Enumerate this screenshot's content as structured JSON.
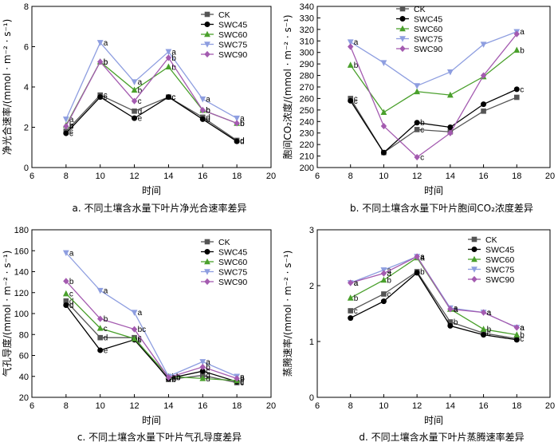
{
  "colors": {
    "CK": "#555555",
    "SWC45": "#000000",
    "SWC60": "#4aa02c",
    "SWC75": "#8e9ee0",
    "SWC90": "#a45bb0"
  },
  "markers": {
    "CK": "square",
    "SWC45": "circle",
    "SWC60": "triangle-up",
    "SWC75": "triangle-down",
    "SWC90": "diamond"
  },
  "chart_data": [
    {
      "type": "line",
      "caption": "a.  不同土壤含水量下叶片净光合速率差异",
      "xlabel": "时间",
      "ylabel": "净光合速率/(mmol · m⁻² · s⁻¹)",
      "xlim": [
        6,
        20
      ],
      "ylim": [
        0,
        8
      ],
      "xticks": [
        6,
        8,
        10,
        12,
        14,
        16,
        18,
        20
      ],
      "yticks": [
        0,
        2,
        4,
        6,
        8
      ],
      "x": [
        8,
        10,
        12,
        14,
        16,
        18
      ],
      "legend_position": "top-right",
      "series": [
        {
          "name": "CK",
          "values": [
            1.8,
            3.6,
            2.8,
            3.5,
            2.5,
            1.35
          ],
          "labels": [
            "c",
            "c",
            "d",
            "c",
            "d",
            "d"
          ]
        },
        {
          "name": "SWC45",
          "values": [
            1.7,
            3.5,
            2.45,
            3.5,
            2.4,
            1.3
          ],
          "labels": [
            "c",
            "c",
            "e",
            "c",
            "d",
            "d"
          ]
        },
        {
          "name": "SWC60",
          "values": [
            2.1,
            5.25,
            3.85,
            5.0,
            2.85,
            2.2
          ],
          "labels": [
            "b",
            "b",
            "b",
            "b",
            "b",
            "b"
          ]
        },
        {
          "name": "SWC75",
          "values": [
            2.4,
            6.2,
            4.25,
            5.75,
            3.4,
            2.45
          ],
          "labels": [
            "a",
            "a",
            "a",
            "a",
            "a",
            "a"
          ]
        },
        {
          "name": "SWC90",
          "values": [
            2.05,
            5.25,
            3.3,
            5.45,
            2.85,
            2.2
          ],
          "labels": [
            "b",
            "b",
            "c",
            "b",
            "b",
            "b"
          ]
        }
      ]
    },
    {
      "type": "line",
      "caption": "b.  不同土壤含水量下叶片胞间CO₂浓度差异",
      "xlabel": "时间",
      "ylabel": "胞间CO₂浓度/(mmol · m⁻² · s⁻¹)",
      "xlim": [
        6,
        20
      ],
      "ylim": [
        200,
        340
      ],
      "xticks": [
        6,
        8,
        10,
        12,
        14,
        16,
        18,
        20
      ],
      "yticks": [
        200,
        210,
        220,
        230,
        240,
        250,
        260,
        270,
        280,
        290,
        300,
        310,
        320,
        330,
        340
      ],
      "x": [
        8,
        10,
        12,
        14,
        16,
        18
      ],
      "legend_position": "top-left",
      "series": [
        {
          "name": "CK",
          "values": [
            260,
            213,
            233,
            231,
            249,
            261
          ],
          "labels": [
            "c",
            "",
            "c",
            "",
            "",
            ""
          ]
        },
        {
          "name": "SWC45",
          "values": [
            258,
            213,
            239,
            235,
            255,
            268
          ],
          "labels": [
            "c",
            "",
            "b",
            "",
            "",
            "c"
          ]
        },
        {
          "name": "SWC60",
          "values": [
            289,
            248,
            266,
            263,
            279,
            302
          ],
          "labels": [
            "b",
            "",
            "",
            "",
            "",
            "b"
          ]
        },
        {
          "name": "SWC75",
          "values": [
            309,
            291,
            271,
            283,
            307,
            318
          ],
          "labels": [
            "a",
            "",
            "",
            "",
            "",
            "a"
          ]
        },
        {
          "name": "SWC90",
          "values": [
            305,
            236,
            209,
            230,
            280,
            316
          ],
          "labels": [
            "",
            "",
            "c",
            "",
            "",
            ""
          ]
        }
      ]
    },
    {
      "type": "line",
      "caption": "c.  不同土壤含水量下叶片气孔导度差异",
      "xlabel": "时间",
      "ylabel": "气孔导度/(mmol · m⁻² · s⁻¹)",
      "xlim": [
        6,
        20
      ],
      "ylim": [
        20,
        180
      ],
      "xticks": [
        6,
        8,
        10,
        12,
        14,
        16,
        18,
        20
      ],
      "yticks": [
        20,
        40,
        60,
        80,
        100,
        120,
        140,
        160,
        180
      ],
      "x": [
        8,
        10,
        12,
        14,
        16,
        18
      ],
      "legend_position": "top-right",
      "series": [
        {
          "name": "CK",
          "values": [
            112,
            77,
            77,
            37,
            41,
            34
          ],
          "labels": [
            "d",
            "d",
            "c",
            "b",
            "d",
            "c"
          ]
        },
        {
          "name": "SWC45",
          "values": [
            108,
            65,
            75,
            38,
            45,
            35
          ],
          "labels": [
            "d",
            "e",
            "c",
            "b",
            "c",
            "c"
          ]
        },
        {
          "name": "SWC60",
          "values": [
            119,
            86,
            76,
            40,
            38,
            36
          ],
          "labels": [
            "c",
            "c",
            "c",
            "b",
            "d",
            "c"
          ]
        },
        {
          "name": "SWC75",
          "values": [
            158,
            122,
            101,
            40,
            54,
            40
          ],
          "labels": [
            "a",
            "a",
            "a",
            "ab",
            "a",
            "a"
          ]
        },
        {
          "name": "SWC90",
          "values": [
            131,
            95,
            85,
            39,
            49,
            38
          ],
          "labels": [
            "b",
            "b",
            "bc",
            "ab",
            "b",
            "b"
          ]
        }
      ]
    },
    {
      "type": "line",
      "caption": "d.  不同土壤含水量下叶片蒸腾速率差异",
      "xlabel": "时间",
      "ylabel": "蒸腾速率/(mmol · m⁻² · s⁻¹)",
      "xlim": [
        6,
        20
      ],
      "ylim": [
        0,
        3
      ],
      "xticks": [
        6,
        8,
        10,
        12,
        14,
        16,
        18,
        20
      ],
      "yticks": [
        0,
        1,
        2,
        3
      ],
      "x": [
        8,
        10,
        12,
        14,
        16,
        18
      ],
      "legend_position": "top-right",
      "series": [
        {
          "name": "CK",
          "values": [
            1.55,
            1.85,
            2.25,
            1.35,
            1.15,
            1.05
          ],
          "labels": [
            "c",
            "c",
            "b",
            "b",
            "c",
            "c"
          ]
        },
        {
          "name": "SWC45",
          "values": [
            1.42,
            1.72,
            2.23,
            1.28,
            1.12,
            1.03
          ],
          "labels": [
            "",
            "",
            "",
            "",
            "",
            ""
          ]
        },
        {
          "name": "SWC60",
          "values": [
            1.78,
            2.1,
            2.5,
            1.58,
            1.22,
            1.12
          ],
          "labels": [
            "b",
            "b",
            "a",
            "a",
            "b",
            "b"
          ]
        },
        {
          "name": "SWC75",
          "values": [
            2.05,
            2.28,
            2.52,
            1.6,
            1.52,
            1.25
          ],
          "labels": [
            "a",
            "a",
            "a",
            "a",
            "a",
            "a"
          ]
        },
        {
          "name": "SWC90",
          "values": [
            2.05,
            2.22,
            2.52,
            1.58,
            1.52,
            1.25
          ],
          "labels": [
            "a",
            "a",
            "a",
            "a",
            "a",
            "a"
          ]
        }
      ]
    }
  ]
}
